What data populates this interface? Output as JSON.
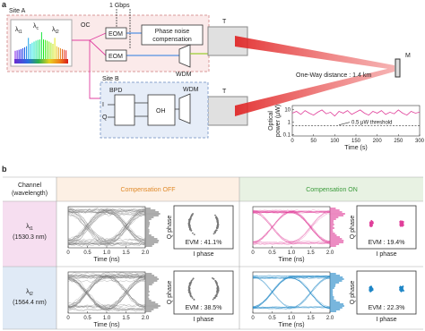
{
  "panel_a": {
    "label": "a",
    "site_a": "Site A",
    "wavelengths": [
      {
        "symbol": "λ",
        "sub": "t1"
      },
      {
        "symbol": "λ",
        "sub": "c"
      },
      {
        "symbol": "λ",
        "sub": "t2"
      }
    ],
    "rate": "1 Gbps",
    "oc": "OC",
    "eom": [
      "EOM",
      "EOM"
    ],
    "compensation": [
      "Phase noise",
      "compensation"
    ],
    "wdm_a": "WDM",
    "telescope": [
      "T",
      "T"
    ],
    "distance": "One-Way distance : 1.4 km",
    "mirror": "M",
    "site_b": "Site B",
    "bpd": "BPD",
    "iq": [
      "I",
      "Q"
    ],
    "oh": "OH",
    "wdm_b": "WDM",
    "inset_chart": {
      "type": "line",
      "ylabel": [
        "Optical",
        "power (μW)"
      ],
      "xlabel": "Time (s)",
      "color": "#e0409a",
      "log_y": true,
      "x": [
        0,
        10,
        20,
        30,
        40,
        50,
        60,
        70,
        80,
        90,
        100,
        110,
        120,
        130,
        140,
        150,
        160,
        170,
        180,
        190,
        200,
        210,
        220,
        230,
        240,
        250,
        260,
        270,
        280,
        290,
        300
      ],
      "values": [
        5,
        7,
        4,
        8,
        5,
        3.5,
        6,
        9,
        4.5,
        6,
        3,
        7,
        5,
        8,
        4,
        6,
        9,
        5,
        3.5,
        7,
        5,
        8,
        4,
        6,
        4.5,
        9,
        5,
        3.5,
        7,
        5,
        6
      ],
      "xlim": [
        0,
        300
      ],
      "xticks": [
        0,
        50,
        100,
        150,
        200,
        250,
        300
      ],
      "ylim": [
        0.08,
        20
      ],
      "yticks": [
        0.1,
        1,
        10
      ],
      "threshold": {
        "value": 0.5,
        "label": "0.5 μW threshold"
      }
    }
  },
  "panel_b": {
    "label": "b",
    "channel_header": [
      "Channel",
      "(wavelength)"
    ],
    "off_header": "Compensation OFF",
    "on_header": "Compensation ON",
    "rows": [
      {
        "channel": {
          "symbol": "λ",
          "sub": "t1"
        },
        "wavelength": "(1530.3 nm)",
        "evm_off": "EVM : 41.1%",
        "evm_on": "EVM : 19.4%"
      },
      {
        "channel": {
          "symbol": "λ",
          "sub": "t2"
        },
        "wavelength": "(1564.4 nm)",
        "evm_off": "EVM : 38.5%",
        "evm_on": "EVM : 22.3%"
      }
    ],
    "eye_axis": {
      "xlabel": "Time (ns)",
      "xlim": [
        0,
        2
      ],
      "xticks": [
        0,
        0.5,
        {
          "value": 1,
          "label": "1.0"
        },
        1.5,
        {
          "value": 2,
          "label": "2.0"
        }
      ]
    },
    "constellation_axis": {
      "xlabel": "I phase",
      "ylabel": "Q phase"
    }
  }
}
